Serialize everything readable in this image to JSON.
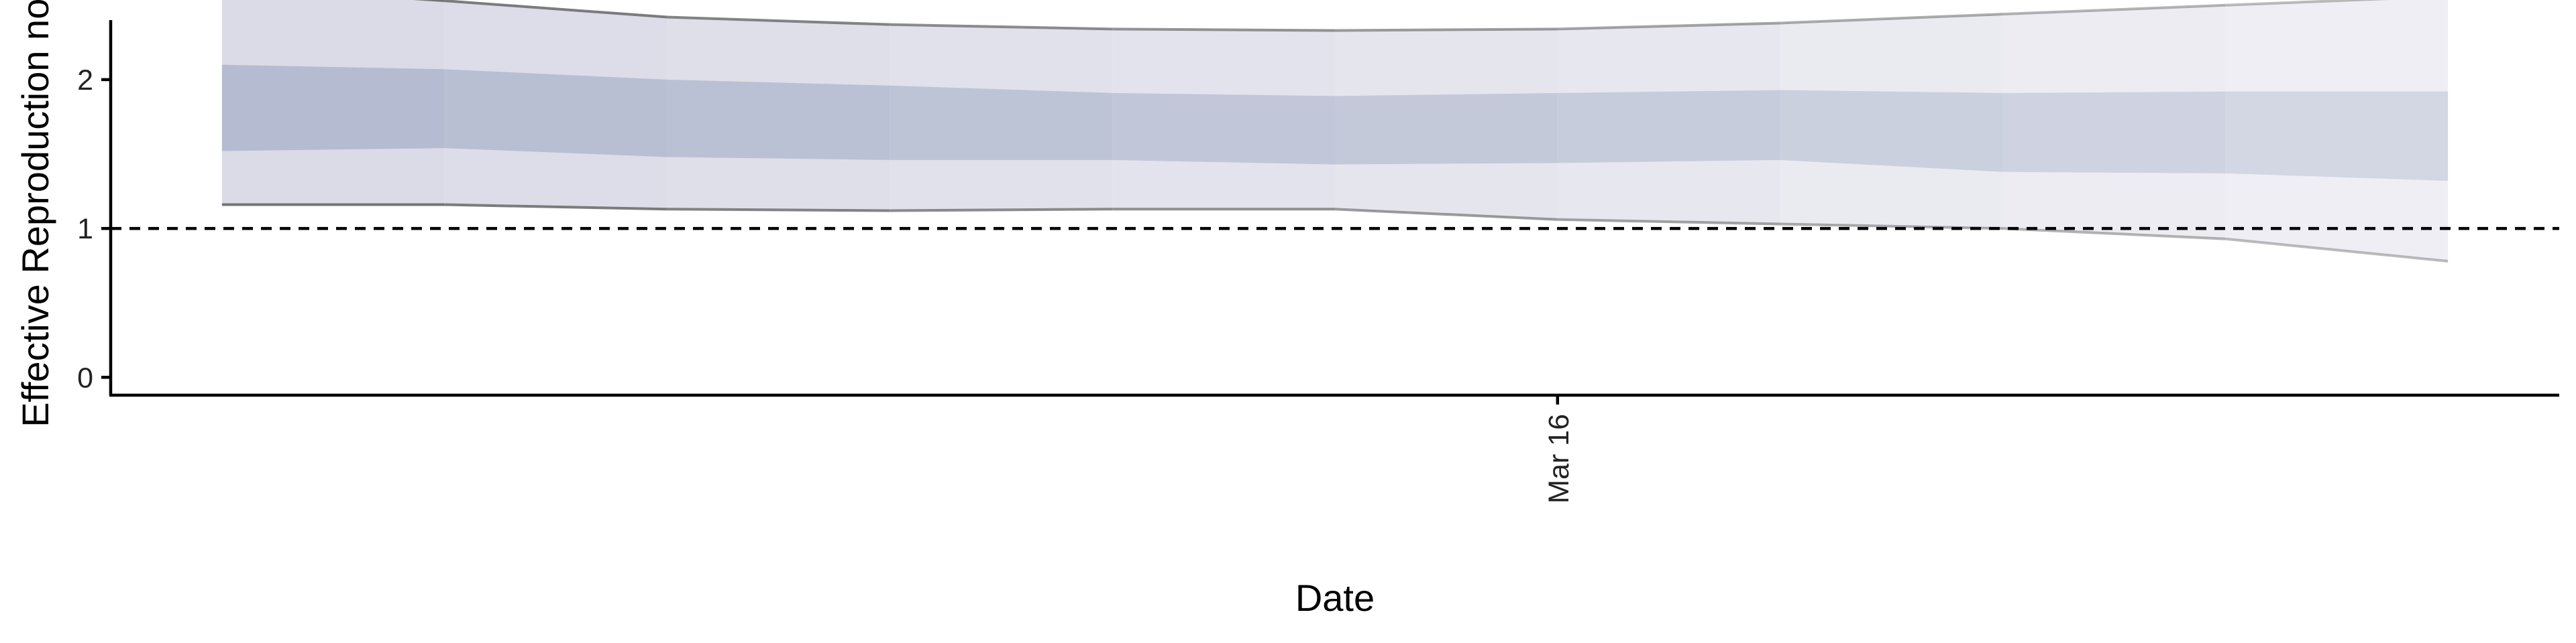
{
  "chart_data": {
    "type": "area",
    "title": "",
    "xlabel": "Date",
    "ylabel": "Effective Reproduction no.",
    "xticks": [
      {
        "label": "Mar 16",
        "day": 6
      }
    ],
    "yticks": [
      0,
      1,
      2
    ],
    "ylim": [
      -0.12,
      2.4
    ],
    "xlim": [
      -0.5,
      10.5
    ],
    "reference_line": {
      "y": 1,
      "style": "dashed"
    },
    "series": [
      {
        "x": [
          0,
          1,
          2,
          3,
          4,
          5,
          6,
          7,
          8,
          9,
          10
        ],
        "lower_90": [
          1.16,
          1.16,
          1.13,
          1.12,
          1.13,
          1.13,
          1.06,
          1.03,
          1.0,
          0.93,
          0.78
        ],
        "lower_50": [
          1.52,
          1.54,
          1.48,
          1.46,
          1.46,
          1.43,
          1.44,
          1.46,
          1.38,
          1.37,
          1.32
        ],
        "upper_50": [
          2.1,
          2.07,
          2.0,
          1.96,
          1.91,
          1.89,
          1.91,
          1.93,
          1.91,
          1.92,
          1.92
        ],
        "upper_90": [
          2.63,
          2.53,
          2.42,
          2.37,
          2.34,
          2.33,
          2.34,
          2.38,
          2.44,
          2.5,
          2.56
        ]
      }
    ],
    "colors": {
      "band_outer": "#d9d9e6",
      "band_inner": "#b3bbd0",
      "bound_line": "#6e6e6e",
      "axis": "#000000"
    },
    "grid": false,
    "legend": "none"
  }
}
